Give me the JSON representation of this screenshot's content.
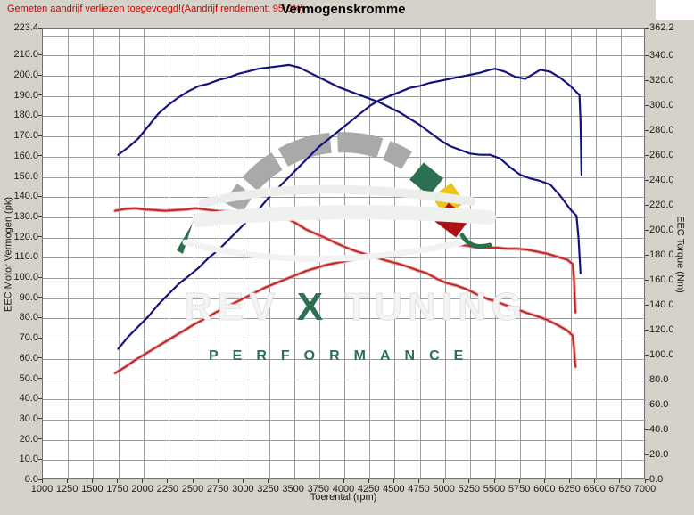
{
  "header": {
    "note": "Gemeten aandrijf verliezen toegevoegd!(Aandrijf rendement: 95.0%)",
    "title": "Vermogenskromme"
  },
  "axes": {
    "x_title": "Toerental (rpm)",
    "y_left_title": "EEC Motor Vermogen (pk)",
    "y_right_title": "EEC Torque (Nm)"
  },
  "watermark": {
    "brand_rev": "REV",
    "brand_x": "X",
    "brand_tuning": "TUNING",
    "performance": "PERFORMANCE",
    "colors": {
      "green": "#2b7050",
      "yellow": "#eec313",
      "red": "#ae1016",
      "gray": "#a9a9a9",
      "ghost": "#f4f4f4"
    }
  },
  "chart_data": {
    "type": "line",
    "title": "Vermogenskromme",
    "xlabel": "Toerental (rpm)",
    "ylabel_left": "EEC Motor Vermogen (pk)",
    "ylabel_right": "EEC Torque (Nm)",
    "grid": true,
    "legend": "none",
    "x_range": [
      1000,
      7000
    ],
    "x_ticks": [
      1000,
      1250,
      1500,
      1750,
      2000,
      2250,
      2500,
      2750,
      3000,
      3250,
      3500,
      3750,
      4000,
      4250,
      4500,
      4750,
      5000,
      5250,
      5500,
      5750,
      6000,
      6250,
      6500,
      6750,
      7000
    ],
    "y_left_range": [
      0,
      223.4
    ],
    "y_left_ticks": [
      0,
      10,
      20,
      30,
      40,
      50,
      60,
      70,
      80,
      90,
      100,
      110,
      120,
      130,
      140,
      150,
      160,
      170,
      180,
      190,
      200,
      210,
      223.4
    ],
    "y_right_range": [
      0,
      362.2
    ],
    "y_right_ticks": [
      0,
      20,
      40,
      60,
      80,
      100,
      120,
      140,
      160,
      180,
      200,
      220,
      240,
      260,
      280,
      300,
      320,
      340,
      362.2
    ],
    "grid_y_step": 10,
    "grid_x_step": 250,
    "series": [
      {
        "name": "vermogen-tuned",
        "axis": "left",
        "color": "#14127f",
        "halo": "none",
        "width": 2.2,
        "points": [
          [
            1750,
            65
          ],
          [
            1850,
            71
          ],
          [
            1950,
            76
          ],
          [
            2050,
            81
          ],
          [
            2150,
            87
          ],
          [
            2250,
            92
          ],
          [
            2350,
            97
          ],
          [
            2450,
            101
          ],
          [
            2550,
            105
          ],
          [
            2650,
            110
          ],
          [
            2750,
            114
          ],
          [
            2850,
            119
          ],
          [
            2950,
            124
          ],
          [
            3050,
            129
          ],
          [
            3150,
            134
          ],
          [
            3250,
            140
          ],
          [
            3350,
            145
          ],
          [
            3450,
            150
          ],
          [
            3550,
            155
          ],
          [
            3650,
            160
          ],
          [
            3750,
            165
          ],
          [
            3850,
            169
          ],
          [
            3950,
            173
          ],
          [
            4050,
            177
          ],
          [
            4150,
            181
          ],
          [
            4250,
            185
          ],
          [
            4350,
            188
          ],
          [
            4450,
            190
          ],
          [
            4550,
            192
          ],
          [
            4650,
            194
          ],
          [
            4750,
            195
          ],
          [
            4850,
            196.5
          ],
          [
            4950,
            197.5
          ],
          [
            5050,
            198.5
          ],
          [
            5150,
            199.5
          ],
          [
            5250,
            200.5
          ],
          [
            5350,
            201.5
          ],
          [
            5450,
            203
          ],
          [
            5500,
            203.5
          ],
          [
            5600,
            202
          ],
          [
            5700,
            199.5
          ],
          [
            5800,
            198.5
          ],
          [
            5900,
            201.5
          ],
          [
            5950,
            203
          ],
          [
            6050,
            202
          ],
          [
            6150,
            199
          ],
          [
            6250,
            195
          ],
          [
            6340,
            190.5
          ],
          [
            6350,
            178
          ],
          [
            6360,
            151
          ]
        ]
      },
      {
        "name": "koppel-tuned",
        "axis": "right",
        "color": "#14127f",
        "halo": "none",
        "width": 2.2,
        "points": [
          [
            1750,
            261
          ],
          [
            1850,
            267
          ],
          [
            1950,
            274
          ],
          [
            2050,
            284
          ],
          [
            2150,
            294
          ],
          [
            2250,
            301
          ],
          [
            2350,
            307
          ],
          [
            2450,
            312
          ],
          [
            2550,
            316
          ],
          [
            2650,
            318
          ],
          [
            2750,
            321
          ],
          [
            2850,
            323
          ],
          [
            2950,
            326
          ],
          [
            3050,
            328
          ],
          [
            3150,
            330
          ],
          [
            3250,
            331
          ],
          [
            3350,
            332
          ],
          [
            3450,
            333
          ],
          [
            3550,
            331
          ],
          [
            3650,
            327
          ],
          [
            3750,
            323
          ],
          [
            3850,
            319
          ],
          [
            3950,
            315
          ],
          [
            4050,
            312
          ],
          [
            4150,
            309
          ],
          [
            4250,
            306
          ],
          [
            4350,
            303
          ],
          [
            4450,
            299
          ],
          [
            4550,
            295
          ],
          [
            4650,
            290
          ],
          [
            4750,
            285
          ],
          [
            4850,
            279
          ],
          [
            4950,
            273
          ],
          [
            5050,
            268
          ],
          [
            5150,
            265
          ],
          [
            5250,
            262
          ],
          [
            5350,
            261
          ],
          [
            5450,
            261
          ],
          [
            5550,
            258
          ],
          [
            5650,
            251
          ],
          [
            5750,
            245
          ],
          [
            5850,
            242
          ],
          [
            5950,
            240
          ],
          [
            6050,
            237
          ],
          [
            6150,
            228
          ],
          [
            6250,
            217
          ],
          [
            6310,
            212
          ],
          [
            6330,
            195
          ],
          [
            6350,
            166
          ]
        ]
      },
      {
        "name": "vermogen-origineel",
        "axis": "left",
        "color": "#b82222",
        "halo": "#e89a9a",
        "width": 1.7,
        "points": [
          [
            1720,
            53
          ],
          [
            1820,
            56
          ],
          [
            1920,
            59.5
          ],
          [
            2020,
            62.5
          ],
          [
            2120,
            65.5
          ],
          [
            2220,
            68.5
          ],
          [
            2320,
            71.5
          ],
          [
            2420,
            74.5
          ],
          [
            2520,
            77.5
          ],
          [
            2620,
            80
          ],
          [
            2720,
            83
          ],
          [
            2820,
            85.5
          ],
          [
            2920,
            88
          ],
          [
            3020,
            90.5
          ],
          [
            3120,
            93
          ],
          [
            3220,
            95.5
          ],
          [
            3320,
            97.5
          ],
          [
            3420,
            99.5
          ],
          [
            3520,
            101.5
          ],
          [
            3620,
            103.5
          ],
          [
            3720,
            105
          ],
          [
            3820,
            106.5
          ],
          [
            3920,
            107.5
          ],
          [
            4020,
            108.5
          ],
          [
            4120,
            109.5
          ],
          [
            4220,
            110
          ],
          [
            4320,
            110.5
          ],
          [
            4420,
            111
          ],
          [
            4520,
            112
          ],
          [
            4620,
            112.5
          ],
          [
            4720,
            113
          ],
          [
            4820,
            114
          ],
          [
            4920,
            115
          ],
          [
            5020,
            115.5
          ],
          [
            5120,
            116.5
          ],
          [
            5220,
            116
          ],
          [
            5320,
            115
          ],
          [
            5420,
            115
          ],
          [
            5520,
            115
          ],
          [
            5620,
            114.5
          ],
          [
            5720,
            114.5
          ],
          [
            5820,
            114
          ],
          [
            5920,
            113
          ],
          [
            6020,
            112
          ],
          [
            6120,
            110.5
          ],
          [
            6220,
            109
          ],
          [
            6270,
            107
          ],
          [
            6285,
            100
          ],
          [
            6300,
            83
          ]
        ]
      },
      {
        "name": "koppel-origineel",
        "axis": "right",
        "color": "#b82222",
        "halo": "#e89a9a",
        "width": 1.7,
        "points": [
          [
            1720,
            216
          ],
          [
            1820,
            217.5
          ],
          [
            1920,
            218
          ],
          [
            2020,
            217
          ],
          [
            2120,
            216.5
          ],
          [
            2220,
            216
          ],
          [
            2320,
            216.5
          ],
          [
            2420,
            217
          ],
          [
            2520,
            218
          ],
          [
            2620,
            217
          ],
          [
            2720,
            216
          ],
          [
            2820,
            215.5
          ],
          [
            2920,
            215
          ],
          [
            3020,
            215
          ],
          [
            3120,
            214.5
          ],
          [
            3220,
            213.5
          ],
          [
            3320,
            212.5
          ],
          [
            3420,
            210.5
          ],
          [
            3520,
            206
          ],
          [
            3620,
            201
          ],
          [
            3720,
            197.5
          ],
          [
            3820,
            194
          ],
          [
            3920,
            190
          ],
          [
            4020,
            186.5
          ],
          [
            4120,
            183.5
          ],
          [
            4220,
            181
          ],
          [
            4320,
            178.5
          ],
          [
            4420,
            176
          ],
          [
            4520,
            174
          ],
          [
            4620,
            171.5
          ],
          [
            4720,
            168.5
          ],
          [
            4820,
            166
          ],
          [
            4920,
            161.5
          ],
          [
            5020,
            158
          ],
          [
            5120,
            156
          ],
          [
            5220,
            153
          ],
          [
            5320,
            149
          ],
          [
            5420,
            145.5
          ],
          [
            5520,
            143
          ],
          [
            5620,
            140
          ],
          [
            5720,
            137
          ],
          [
            5820,
            134
          ],
          [
            5920,
            131.5
          ],
          [
            6020,
            128.5
          ],
          [
            6120,
            124.5
          ],
          [
            6220,
            120
          ],
          [
            6270,
            116
          ],
          [
            6285,
            107
          ],
          [
            6300,
            91
          ]
        ]
      }
    ]
  }
}
